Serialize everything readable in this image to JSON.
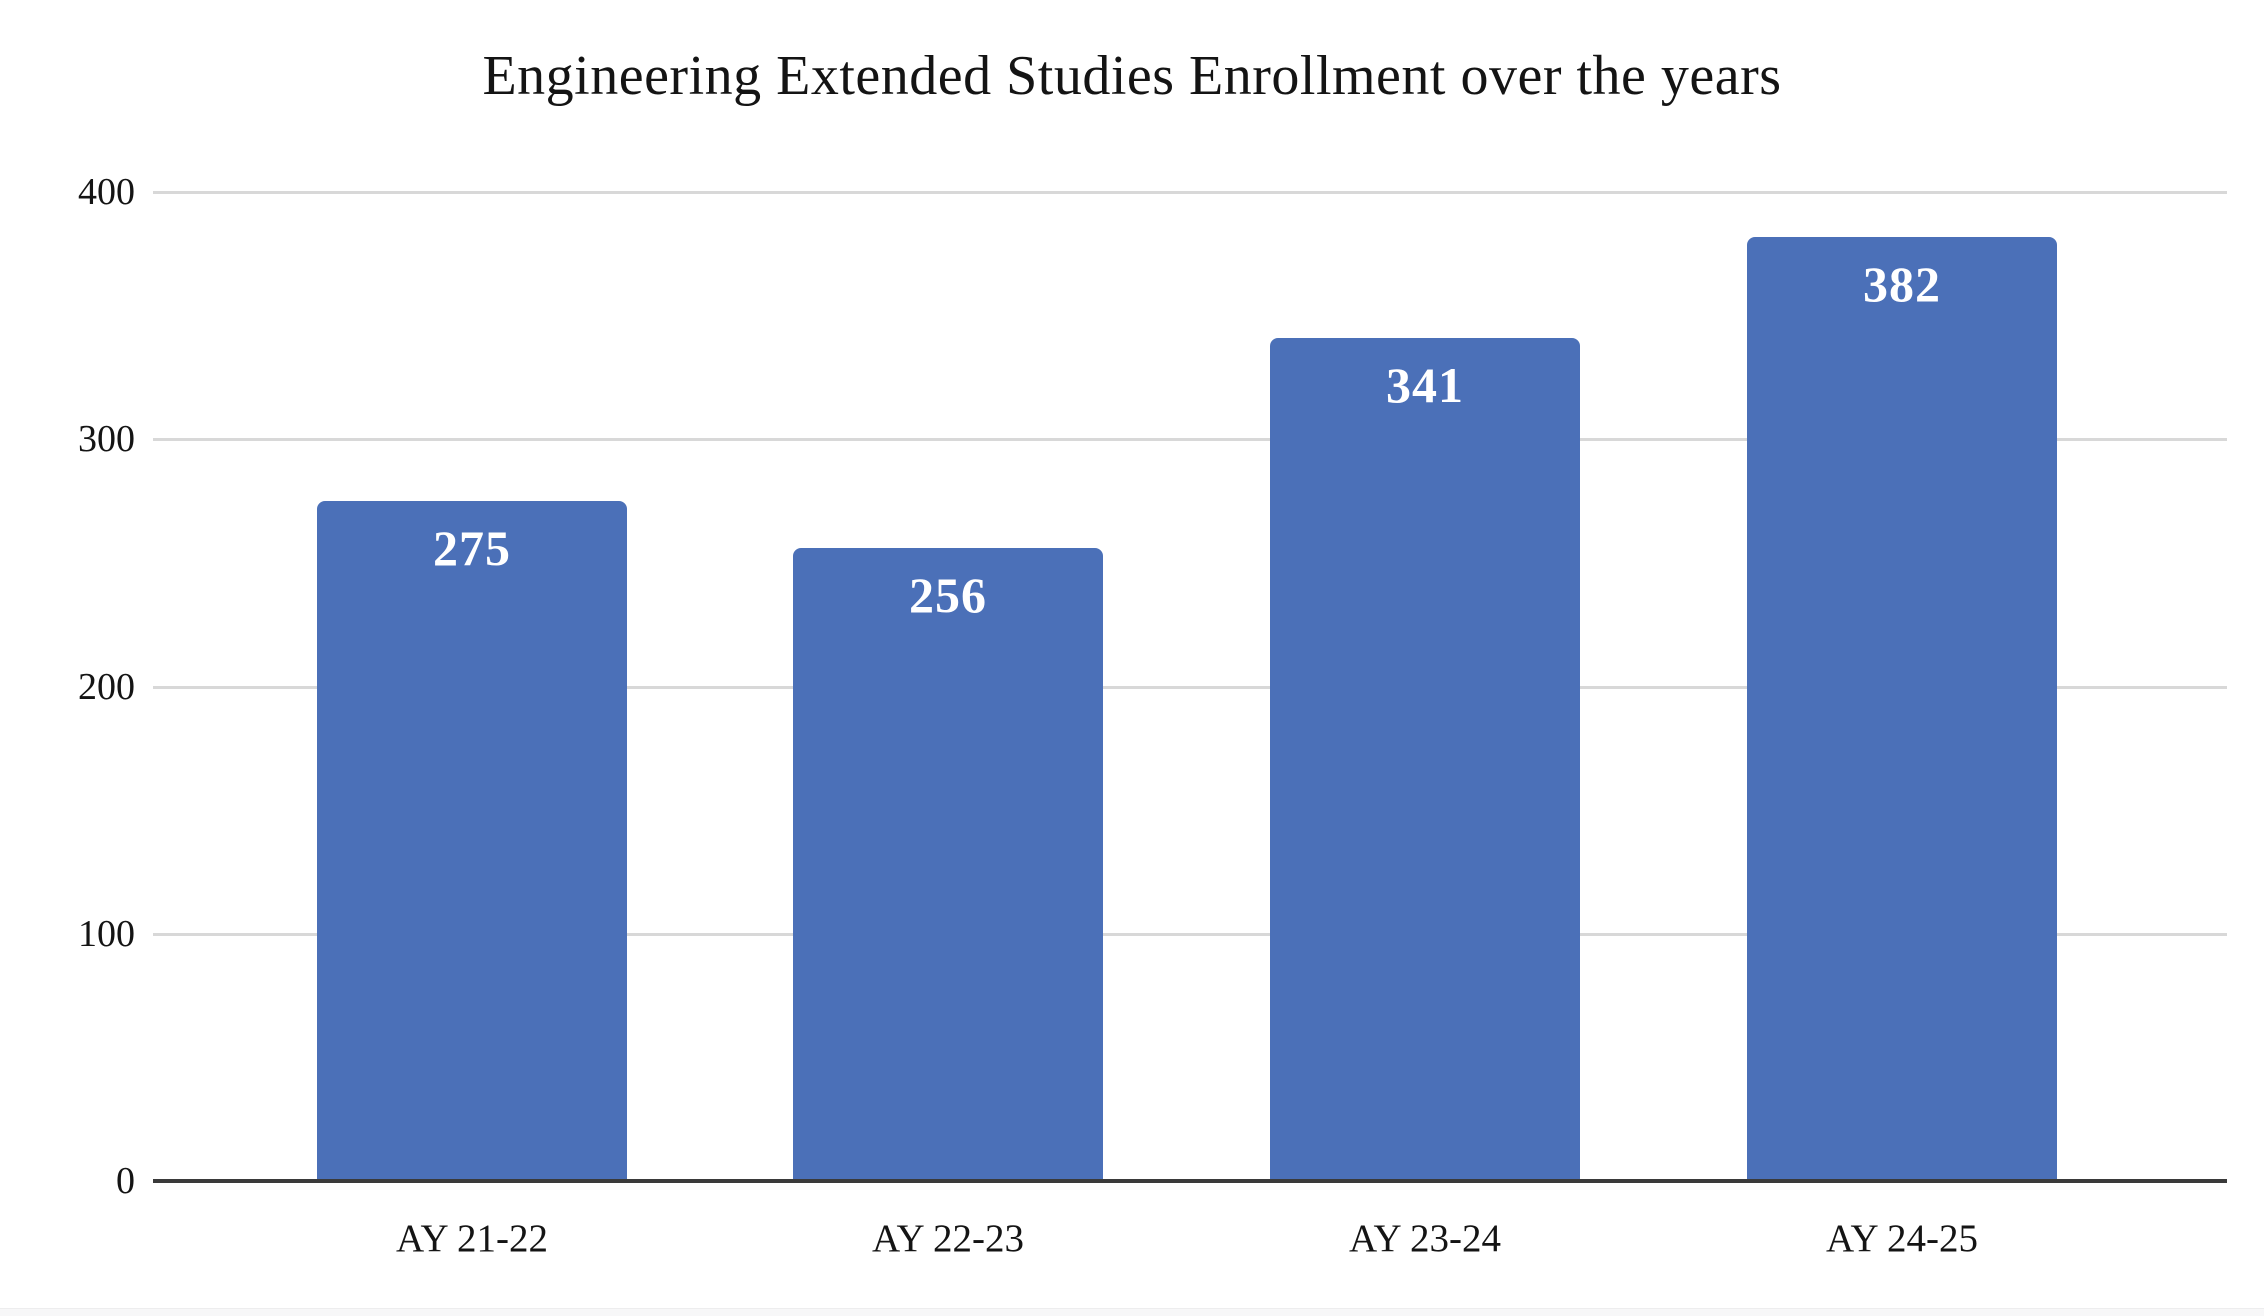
{
  "title": "Engineering Extended Studies Enrollment over the years",
  "chart_data": {
    "type": "bar",
    "title": "Engineering Extended Studies Enrollment over the years",
    "categories": [
      "AY 21-22",
      "AY 22-23",
      "AY 23-24",
      "AY 24-25"
    ],
    "values": [
      275,
      256,
      341,
      382
    ],
    "bar_labels": [
      "275",
      "256",
      "341",
      "382"
    ],
    "xlabel": "",
    "ylabel": "",
    "ylim": [
      0,
      400
    ],
    "yticks": [
      0,
      100,
      200,
      300,
      400
    ],
    "grid": true,
    "legend_position": "none",
    "colors": {
      "bar": "#4b70b8",
      "bar_label": "#ffffff",
      "axis_line": "#3a3a3a",
      "gridline": "#d8d8d8",
      "tick_label": "#141414",
      "title": "#141414",
      "background": "#ffffff",
      "footer_strip": "#f7f7f8"
    }
  }
}
